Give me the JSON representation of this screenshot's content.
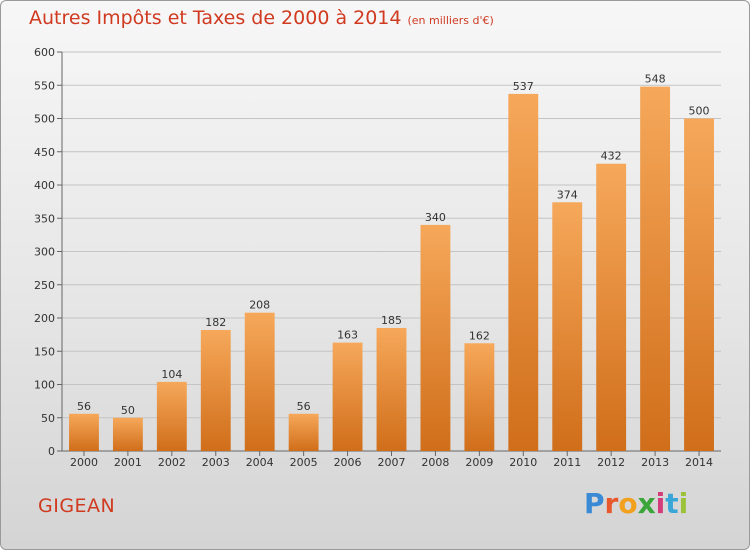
{
  "title": "Autres Impôts et Taxes de 2000 à 2014",
  "subtitle": "(en milliers d'€)",
  "commune": "GIGEAN",
  "logo": {
    "letters": [
      "P",
      "r",
      "o",
      "x",
      "i",
      "t",
      "i"
    ],
    "colors": [
      "#3a8ad6",
      "#e9572d",
      "#f2a11e",
      "#3aa63a",
      "#d43b7a",
      "#3aa6d8",
      "#9bc33a"
    ]
  },
  "chart_data": {
    "type": "bar",
    "title": "Autres Impôts et Taxes de 2000 à 2014",
    "subtitle": "(en milliers d'€)",
    "categories": [
      "2000",
      "2001",
      "2002",
      "2003",
      "2004",
      "2005",
      "2006",
      "2007",
      "2008",
      "2009",
      "2010",
      "2011",
      "2012",
      "2013",
      "2014"
    ],
    "values": [
      56,
      50,
      104,
      182,
      208,
      56,
      163,
      185,
      340,
      162,
      537,
      374,
      432,
      548,
      500
    ],
    "ylim": [
      0,
      600
    ],
    "yticks": [
      0,
      50,
      100,
      150,
      200,
      250,
      300,
      350,
      400,
      450,
      500,
      550,
      600
    ],
    "grid": true,
    "colors": {
      "bar_top": "#f6a85a",
      "bar_bottom": "#d06e1a",
      "text": "#d03a20"
    }
  }
}
